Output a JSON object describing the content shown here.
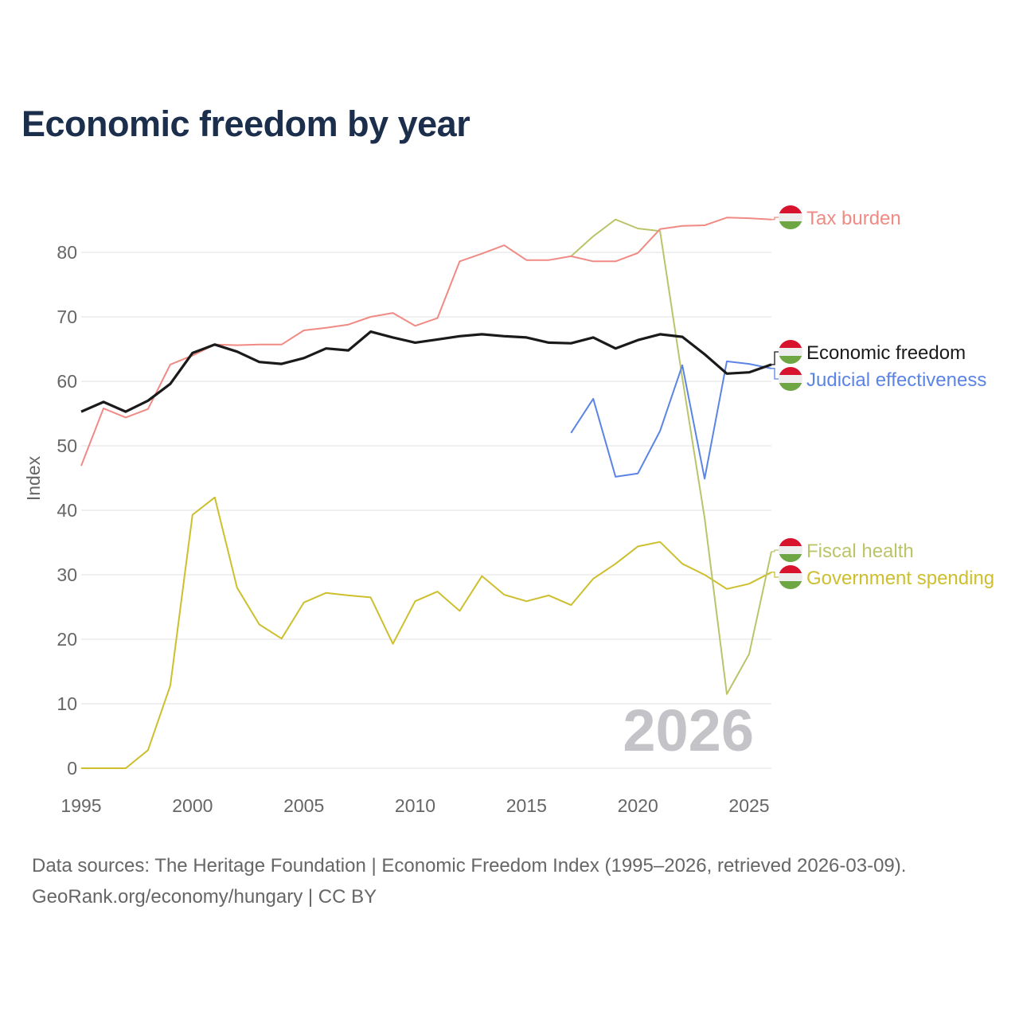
{
  "title": "Economic freedom by year",
  "watermark_year": "2026",
  "source_line1": "Data sources: The Heritage Foundation | Economic Freedom Index (1995–2026, retrieved 2026-03-09).",
  "source_line2": "GeoRank.org/economy/hungary | CC BY",
  "chart_data": {
    "type": "line",
    "title": "Economic freedom by year",
    "xlabel": "",
    "ylabel": "Index",
    "xlim": [
      1995,
      2026
    ],
    "ylim": [
      0,
      88
    ],
    "xticks": [
      1995,
      2000,
      2005,
      2010,
      2015,
      2020,
      2025
    ],
    "yticks": [
      0,
      10,
      20,
      30,
      40,
      50,
      60,
      70,
      80
    ],
    "grid": true,
    "legend": "right, inline end labels with flag icons",
    "series": [
      {
        "name": "Tax burden",
        "color": "#f08a84",
        "start": 1995,
        "values": [
          46.9,
          55.8,
          54.4,
          55.7,
          62.6,
          64.0,
          65.7,
          65.6,
          65.7,
          65.7,
          67.9,
          68.3,
          68.8,
          70.0,
          70.6,
          68.6,
          69.8,
          78.6,
          79.8,
          81.1,
          78.8,
          78.8,
          79.4,
          78.6,
          78.6,
          79.9,
          83.6,
          84.1,
          84.2,
          85.4,
          85.3,
          85.1
        ]
      },
      {
        "name": "Economic freedom",
        "color": "#1a1a1a",
        "start": 1995,
        "values": [
          55.3,
          56.8,
          55.3,
          57.0,
          59.6,
          64.4,
          65.7,
          64.6,
          63.0,
          62.7,
          63.6,
          65.1,
          64.8,
          67.7,
          66.8,
          66.0,
          66.5,
          67.0,
          67.3,
          67.0,
          66.8,
          66.0,
          65.9,
          66.8,
          65.1,
          66.4,
          67.3,
          66.9,
          64.2,
          61.2,
          61.4,
          62.6
        ]
      },
      {
        "name": "Judicial effectiveness",
        "color": "#5b84e6",
        "start": 2017,
        "values": [
          52.0,
          57.3,
          45.2,
          45.7,
          52.3,
          62.5,
          44.9,
          63.1,
          62.7,
          62.0
        ]
      },
      {
        "name": "Fiscal health",
        "color": "#bcc46a",
        "start": 2017,
        "values": [
          79.4,
          82.5,
          85.1,
          83.7,
          83.3,
          60.5,
          38.8,
          11.5,
          17.7,
          33.6
        ]
      },
      {
        "name": "Government spending",
        "color": "#cdbf2e",
        "start": 1995,
        "values": [
          0,
          0,
          0,
          2.8,
          12.8,
          39.3,
          42.0,
          28.0,
          22.3,
          20.1,
          25.7,
          27.2,
          26.8,
          26.5,
          19.3,
          25.9,
          27.4,
          24.4,
          29.8,
          26.9,
          25.9,
          26.8,
          25.3,
          29.4,
          31.7,
          34.4,
          35.1,
          31.7,
          30.0,
          27.8,
          28.6,
          30.4
        ]
      }
    ]
  },
  "flag_icon": "hungary-flag-icon",
  "flag_colors": {
    "red": "#d7132e",
    "white": "#eeeeee",
    "green": "#6ea644"
  }
}
